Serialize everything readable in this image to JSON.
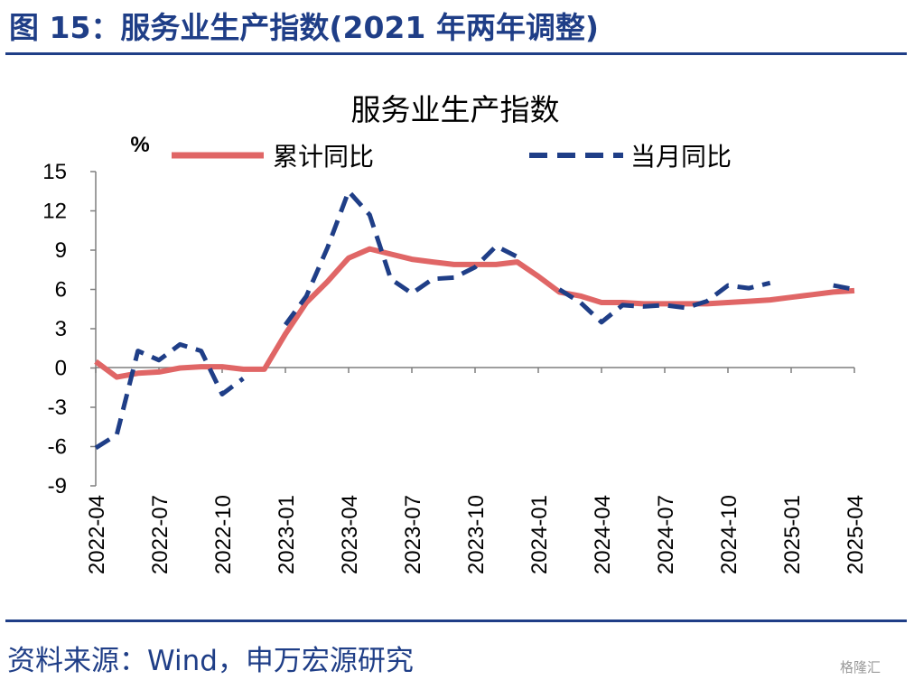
{
  "header": {
    "figure_title": "图 15：服务业生产指数(2021 年两年调整)"
  },
  "footer": {
    "source": "资料来源：Wind，申万宏源研究",
    "watermark": "格隆汇"
  },
  "chart_data": {
    "type": "line",
    "title": "服务业生产指数",
    "ylabel": "%",
    "xlabel": "",
    "ylim": [
      -9,
      15
    ],
    "yticks": [
      15,
      12,
      9,
      6,
      3,
      0,
      -3,
      -6,
      -9
    ],
    "grid": false,
    "legend_position": "top",
    "x": [
      "2022-04",
      "2022-05",
      "2022-06",
      "2022-07",
      "2022-08",
      "2022-09",
      "2022-10",
      "2022-11",
      "2022-12",
      "2023-01",
      "2023-02",
      "2023-03",
      "2023-04",
      "2023-05",
      "2023-06",
      "2023-07",
      "2023-08",
      "2023-09",
      "2023-10",
      "2023-11",
      "2023-12",
      "2024-01",
      "2024-02",
      "2024-03",
      "2024-04",
      "2024-05",
      "2024-06",
      "2024-07",
      "2024-08",
      "2024-09",
      "2024-10",
      "2024-11",
      "2024-12",
      "2025-01",
      "2025-02",
      "2025-03",
      "2025-04"
    ],
    "x_tick_labels": [
      "2022-04",
      "2022-07",
      "2022-10",
      "2023-01",
      "2023-04",
      "2023-07",
      "2023-10",
      "2024-01",
      "2024-04",
      "2024-07",
      "2024-10",
      "2025-01",
      "2025-04"
    ],
    "series": [
      {
        "name": "累计同比",
        "color": "#e06666",
        "style": "solid",
        "values": [
          0.5,
          -0.7,
          -0.4,
          -0.3,
          0.0,
          0.1,
          0.1,
          -0.1,
          -0.1,
          2.6,
          5.0,
          6.6,
          8.4,
          9.1,
          8.7,
          8.3,
          8.1,
          7.9,
          7.9,
          7.9,
          8.1,
          7.0,
          5.8,
          5.5,
          5.0,
          5.0,
          4.9,
          4.9,
          4.9,
          4.9,
          5.0,
          5.1,
          5.2,
          5.4,
          5.6,
          5.8,
          5.9
        ]
      },
      {
        "name": "当月同比",
        "color": "#1f3e87",
        "style": "dashed",
        "values": [
          -6.1,
          -5.1,
          1.3,
          0.6,
          1.8,
          1.3,
          -2.0,
          -0.8,
          null,
          3.3,
          5.5,
          9.2,
          13.5,
          11.7,
          6.8,
          5.7,
          6.8,
          6.9,
          7.7,
          9.3,
          8.5,
          null,
          6.0,
          5.0,
          3.5,
          4.8,
          4.7,
          4.8,
          4.6,
          5.1,
          6.3,
          6.1,
          6.5,
          null,
          null,
          6.3,
          6.0
        ]
      }
    ]
  }
}
